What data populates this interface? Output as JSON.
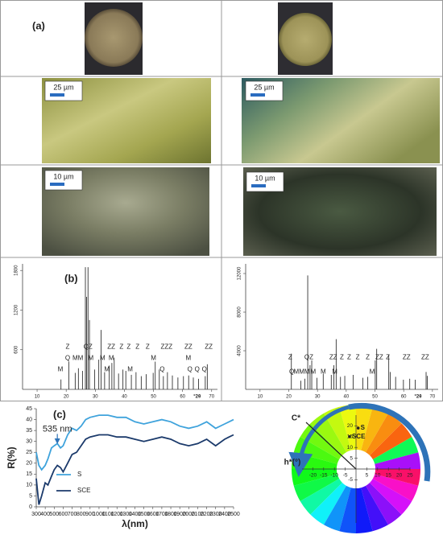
{
  "figure": {
    "panel_labels": [
      "(a)",
      "(b)",
      "(c)"
    ],
    "scale_bars": [
      "25 µm",
      "25 µm",
      "10 µm",
      "10 µm"
    ]
  },
  "chart_data": [
    {
      "type": "stem",
      "color": "#333333",
      "x_label": "°2θ",
      "xlim": [
        5,
        72
      ],
      "xticks": [
        10,
        20,
        30,
        40,
        50,
        60,
        70
      ],
      "ylim": [
        0,
        1900
      ],
      "yticks": [
        600,
        1200,
        1800
      ],
      "x": [
        18.2,
        20.9,
        23.1,
        24.2,
        25.6,
        26.6,
        27.0,
        27.5,
        28.0,
        29.8,
        31.2,
        32.0,
        33.2,
        34.8,
        35.7,
        36.5,
        38.0,
        39.5,
        40.5,
        42.4,
        44.0,
        45.8,
        47.5,
        49.9,
        50.6,
        52.0,
        53.4,
        54.8,
        56.5,
        58.4,
        60.3,
        62.1,
        63.7,
        65.5,
        67.8,
        68.5
      ],
      "values": [
        150,
        420,
        250,
        320,
        280,
        1850,
        1400,
        1850,
        1050,
        300,
        450,
        900,
        260,
        360,
        400,
        480,
        240,
        300,
        280,
        220,
        260,
        200,
        230,
        250,
        420,
        300,
        200,
        260,
        210,
        180,
        200,
        210,
        180,
        160,
        200,
        380
      ],
      "annotations": [
        {
          "x": 20.5,
          "y": 640,
          "text": "Z"
        },
        {
          "x": 27.5,
          "y": 640,
          "text": "QZ"
        },
        {
          "x": 35.5,
          "y": 640,
          "text": "ZZ"
        },
        {
          "x": 39,
          "y": 640,
          "text": "Z"
        },
        {
          "x": 41.5,
          "y": 640,
          "text": "Z"
        },
        {
          "x": 44.5,
          "y": 640,
          "text": "Z"
        },
        {
          "x": 48,
          "y": 640,
          "text": "Z"
        },
        {
          "x": 54.5,
          "y": 640,
          "text": "ZZZ"
        },
        {
          "x": 62,
          "y": 640,
          "text": "ZZ"
        },
        {
          "x": 69,
          "y": 640,
          "text": "ZZ"
        },
        {
          "x": 20.5,
          "y": 470,
          "text": "Q"
        },
        {
          "x": 24,
          "y": 470,
          "text": "MM"
        },
        {
          "x": 28.5,
          "y": 470,
          "text": "M"
        },
        {
          "x": 32.5,
          "y": 470,
          "text": "M"
        },
        {
          "x": 35.5,
          "y": 470,
          "text": "M"
        },
        {
          "x": 50,
          "y": 470,
          "text": "M"
        },
        {
          "x": 62,
          "y": 470,
          "text": "M"
        },
        {
          "x": 18,
          "y": 300,
          "text": "M"
        },
        {
          "x": 34,
          "y": 300,
          "text": "M"
        },
        {
          "x": 42,
          "y": 300,
          "text": "M"
        },
        {
          "x": 53,
          "y": 300,
          "text": "Q"
        },
        {
          "x": 62.5,
          "y": 300,
          "text": "Q"
        },
        {
          "x": 65,
          "y": 300,
          "text": "Q"
        },
        {
          "x": 67.5,
          "y": 300,
          "text": "Q"
        }
      ]
    },
    {
      "type": "stem",
      "color": "#333333",
      "x_label": "°2θ",
      "xlim": [
        5,
        72
      ],
      "xticks": [
        10,
        20,
        30,
        40,
        50,
        60,
        70
      ],
      "ylim": [
        0,
        13000
      ],
      "yticks": [
        4000,
        8000,
        12000
      ],
      "x": [
        20.9,
        24.2,
        25.6,
        26.6,
        27.4,
        28.0,
        29.8,
        32.0,
        34.8,
        35.7,
        36.5,
        38.0,
        39.5,
        42.4,
        45.8,
        47.5,
        50.1,
        50.6,
        54.8,
        55.3,
        57.2,
        59.9,
        62.1,
        64.0,
        67.8,
        68.2
      ],
      "values": [
        3700,
        900,
        1100,
        11800,
        2500,
        3000,
        1200,
        1600,
        1500,
        2500,
        5200,
        1300,
        1400,
        1500,
        1200,
        1300,
        3000,
        4200,
        3600,
        1800,
        1300,
        1000,
        1100,
        1000,
        1800,
        1400
      ],
      "annotations": [
        {
          "x": 20.5,
          "y": 3300,
          "text": "Z"
        },
        {
          "x": 27,
          "y": 3300,
          "text": "QZ"
        },
        {
          "x": 35.5,
          "y": 3300,
          "text": "ZZ"
        },
        {
          "x": 38.5,
          "y": 3300,
          "text": "Z"
        },
        {
          "x": 41,
          "y": 3300,
          "text": "Z"
        },
        {
          "x": 44,
          "y": 3300,
          "text": "Z"
        },
        {
          "x": 47.5,
          "y": 3300,
          "text": "Z"
        },
        {
          "x": 51.5,
          "y": 3300,
          "text": "ZZ"
        },
        {
          "x": 54.5,
          "y": 3300,
          "text": "Z"
        },
        {
          "x": 61,
          "y": 3300,
          "text": "ZZ"
        },
        {
          "x": 67.5,
          "y": 3300,
          "text": "ZZ"
        },
        {
          "x": 21,
          "y": 1800,
          "text": "Q"
        },
        {
          "x": 24.5,
          "y": 1800,
          "text": "MMM"
        },
        {
          "x": 28.5,
          "y": 1800,
          "text": "M"
        },
        {
          "x": 32,
          "y": 1800,
          "text": "M"
        },
        {
          "x": 36,
          "y": 1800,
          "text": "M"
        },
        {
          "x": 49,
          "y": 1800,
          "text": "M"
        }
      ]
    },
    {
      "type": "line",
      "x_label": "λ(nm)",
      "y_label": "R(%)",
      "legend": "lower left",
      "xlim": [
        300,
        2500
      ],
      "xticks": [
        300,
        400,
        500,
        600,
        700,
        800,
        900,
        1000,
        1100,
        1200,
        1300,
        1400,
        1500,
        1600,
        1700,
        1800,
        1900,
        2000,
        2100,
        2200,
        2300,
        2400,
        2500
      ],
      "ylim": [
        0,
        45
      ],
      "yticks": [
        0,
        5,
        10,
        15,
        20,
        25,
        30,
        35,
        40,
        45
      ],
      "x": [
        300,
        330,
        360,
        400,
        430,
        470,
        500,
        535,
        570,
        600,
        650,
        700,
        750,
        800,
        850,
        900,
        1000,
        1100,
        1200,
        1300,
        1400,
        1500,
        1600,
        1700,
        1800,
        1900,
        2000,
        2100,
        2200,
        2300,
        2400,
        2450,
        2500
      ],
      "series": [
        {
          "name": "S",
          "color": "#3fa3dc",
          "values": [
            25,
            19,
            17,
            19,
            22,
            27,
            28,
            29,
            27,
            28,
            33,
            36,
            35,
            37,
            40,
            41,
            42,
            42,
            41,
            41,
            39,
            38,
            39,
            40,
            39,
            37,
            36,
            37,
            39,
            36,
            38,
            39,
            40
          ]
        },
        {
          "name": "SCE",
          "color": "#1b3a6b",
          "values": [
            13,
            1,
            5,
            11,
            10,
            14,
            17,
            19,
            18,
            16,
            20,
            24,
            25,
            28,
            31,
            32,
            33,
            33,
            32,
            32,
            31,
            30,
            31,
            32,
            31,
            29,
            28,
            29,
            31,
            28,
            31,
            32,
            33
          ]
        }
      ],
      "annotations": [
        {
          "x": 535,
          "y": 29,
          "text": "535 nm"
        }
      ]
    },
    {
      "type": "scatter",
      "x_label": "h*(°)",
      "y_label": "C*",
      "xlim": [
        -25,
        25
      ],
      "xticks": [
        -20,
        -15,
        -10,
        -5,
        5,
        10,
        15,
        20,
        25
      ],
      "ylim": [
        -25,
        25
      ],
      "yticks": [
        20,
        15,
        10,
        5,
        -5
      ],
      "x": [
        1,
        -3
      ],
      "values": [
        19,
        15
      ],
      "point_labels": [
        "S",
        "SCE"
      ],
      "color": "#222222"
    }
  ]
}
